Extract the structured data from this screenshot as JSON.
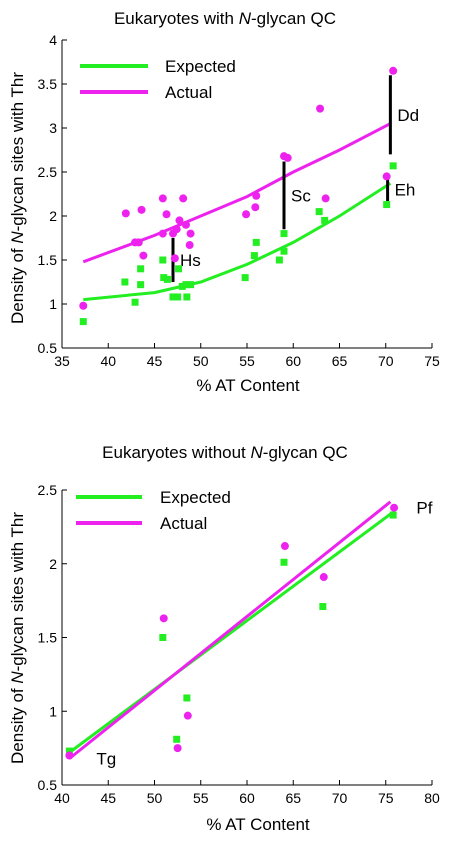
{
  "chart_data": [
    {
      "type": "scatter",
      "title_parts": [
        "Eukaryotes with ",
        "N",
        "-glycan QC"
      ],
      "xlabel": "% AT Content",
      "ylabel_parts": [
        "Density of ",
        "N",
        "-glycan sites with Thr"
      ],
      "xlim": [
        35,
        75
      ],
      "ylim": [
        0.5,
        4
      ],
      "xticks": [
        "35",
        "40",
        "45",
        "50",
        "55",
        "60",
        "65",
        "70",
        "75"
      ],
      "yticks": [
        "0.5",
        "1",
        "1.5",
        "2",
        "2.5",
        "3",
        "3.5",
        "4"
      ],
      "legend_position": "top-left",
      "series": [
        {
          "name": "Expected",
          "color": "#22ee22",
          "marker": "square",
          "points": [
            [
              37.3,
              0.8
            ],
            [
              41.8,
              1.25
            ],
            [
              42.9,
              1.02
            ],
            [
              43.5,
              1.22
            ],
            [
              43.5,
              1.4
            ],
            [
              45.9,
              1.5
            ],
            [
              46.0,
              1.3
            ],
            [
              46.4,
              1.28
            ],
            [
              47.0,
              1.08
            ],
            [
              47.5,
              1.08
            ],
            [
              47.6,
              1.4
            ],
            [
              48.0,
              1.2
            ],
            [
              48.4,
              1.22
            ],
            [
              48.9,
              1.22
            ],
            [
              48.5,
              1.08
            ],
            [
              54.8,
              1.3
            ],
            [
              55.8,
              1.55
            ],
            [
              56.0,
              1.7
            ],
            [
              58.5,
              1.5
            ],
            [
              59.0,
              1.6
            ],
            [
              59.0,
              1.8
            ],
            [
              62.8,
              2.05
            ],
            [
              63.4,
              1.95
            ],
            [
              70.1,
              2.13
            ],
            [
              70.8,
              2.57
            ]
          ],
          "fit_line": [
            [
              37.3,
              1.05
            ],
            [
              45,
              1.13
            ],
            [
              50,
              1.25
            ],
            [
              55,
              1.45
            ],
            [
              60,
              1.7
            ],
            [
              65,
              2.0
            ],
            [
              70.5,
              2.37
            ]
          ]
        },
        {
          "name": "Actual",
          "color": "#ee22ee",
          "marker": "circle",
          "points": [
            [
              37.3,
              0.98
            ],
            [
              41.9,
              2.03
            ],
            [
              42.9,
              1.7
            ],
            [
              43.3,
              1.7
            ],
            [
              43.6,
              2.07
            ],
            [
              43.8,
              1.55
            ],
            [
              45.9,
              2.2
            ],
            [
              45.9,
              1.8
            ],
            [
              46.3,
              2.02
            ],
            [
              47.0,
              1.8
            ],
            [
              47.2,
              1.52
            ],
            [
              47.4,
              1.85
            ],
            [
              47.7,
              1.95
            ],
            [
              48.1,
              2.2
            ],
            [
              48.4,
              1.9
            ],
            [
              48.8,
              1.67
            ],
            [
              48.9,
              1.8
            ],
            [
              54.9,
              2.02
            ],
            [
              55.9,
              2.1
            ],
            [
              56.0,
              2.23
            ],
            [
              59.0,
              2.68
            ],
            [
              59.4,
              2.66
            ],
            [
              62.9,
              3.22
            ],
            [
              63.5,
              2.2
            ],
            [
              70.1,
              2.45
            ],
            [
              70.8,
              3.65
            ]
          ],
          "fit_line": [
            [
              37.3,
              1.48
            ],
            [
              45,
              1.78
            ],
            [
              50,
              2.0
            ],
            [
              55,
              2.22
            ],
            [
              60,
              2.5
            ],
            [
              65,
              2.75
            ],
            [
              70.5,
              3.05
            ]
          ]
        }
      ],
      "deviation_bars": [
        {
          "label": "Hs",
          "x": 47.0,
          "y_from": 1.25,
          "y_to": 1.75
        },
        {
          "label": "Sc",
          "x": 59.0,
          "y_from": 1.85,
          "y_to": 2.62
        },
        {
          "label": "Dd",
          "x": 70.5,
          "y_from": 2.7,
          "y_to": 3.6
        },
        {
          "label": "Eh",
          "x": 70.2,
          "y_from": 2.17,
          "y_to": 2.43
        }
      ]
    },
    {
      "type": "scatter",
      "title_parts": [
        "Eukaryotes without ",
        "N",
        "-glycan QC"
      ],
      "xlabel": "% AT Content",
      "ylabel_parts": [
        "Density of ",
        "N",
        "-glycan sites with Thr"
      ],
      "xlim": [
        40,
        80
      ],
      "ylim": [
        0.5,
        2.5
      ],
      "xticks": [
        "40",
        "45",
        "50",
        "55",
        "60",
        "65",
        "70",
        "75",
        "80"
      ],
      "yticks": [
        "0.5",
        "1",
        "1.5",
        "2",
        "2.5"
      ],
      "legend_position": "top-left",
      "series": [
        {
          "name": "Expected",
          "color": "#22ee22",
          "marker": "square",
          "points": [
            [
              40.8,
              0.73
            ],
            [
              50.9,
              1.5
            ],
            [
              52.4,
              0.81
            ],
            [
              53.5,
              1.09
            ],
            [
              64.0,
              2.01
            ],
            [
              68.2,
              1.71
            ],
            [
              75.8,
              2.33
            ]
          ],
          "fit_line": [
            [
              40.8,
              0.72
            ],
            [
              75.8,
              2.35
            ]
          ]
        },
        {
          "name": "Actual",
          "color": "#ee22ee",
          "marker": "circle",
          "points": [
            [
              40.8,
              0.7
            ],
            [
              51.0,
              1.63
            ],
            [
              52.5,
              0.75
            ],
            [
              53.6,
              0.97
            ],
            [
              64.1,
              2.12
            ],
            [
              68.3,
              1.91
            ],
            [
              75.9,
              2.38
            ]
          ],
          "fit_line": [
            [
              40.8,
              0.68
            ],
            [
              75.5,
              2.42
            ]
          ]
        }
      ],
      "point_labels": [
        {
          "label": "Tg",
          "x": 42.2,
          "y": 0.72
        },
        {
          "label": "Pf",
          "x": 76.8,
          "y": 2.38
        }
      ]
    }
  ]
}
